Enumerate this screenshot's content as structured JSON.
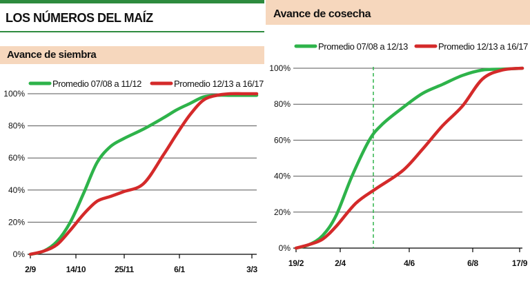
{
  "left": {
    "main_title": "LOS NÚMEROS DEL MAÍZ",
    "panel_title": "Avance de siembra"
  },
  "right": {
    "panel_title": "Avance de cosecha"
  },
  "colors": {
    "green": "#2eb34a",
    "red": "#d42a2a",
    "grid": "#555555",
    "header": "#f6d7bd",
    "accent": "#2e8b3e"
  },
  "chart_data": [
    {
      "type": "line",
      "title": "Avance de siembra",
      "x_ticks": [
        "2/9",
        "14/10",
        "25/11",
        "6/1",
        "3/3"
      ],
      "y_ticks": [
        "0%",
        "20%",
        "40%",
        "60%",
        "80%",
        "100%"
      ],
      "ylim": [
        0,
        100
      ],
      "grid": true,
      "legend": "top",
      "series": [
        {
          "name": "Promedio 07/08 a 11/12",
          "color": "#2eb34a",
          "points": [
            [
              0,
              0
            ],
            [
              10,
              2
            ],
            [
              20,
              8
            ],
            [
              30,
              20
            ],
            [
              40,
              38
            ],
            [
              50,
              57
            ],
            [
              60,
              67
            ],
            [
              70,
              72
            ],
            [
              85,
              78
            ],
            [
              100,
              85
            ],
            [
              110,
              90
            ],
            [
              120,
              94
            ],
            [
              130,
              98
            ],
            [
              140,
              99
            ],
            [
              150,
              99
            ],
            [
              160,
              99
            ],
            [
              170,
              99
            ]
          ]
        },
        {
          "name": "Promedio 12/13 a 16/17",
          "color": "#d42a2a",
          "points": [
            [
              0,
              0
            ],
            [
              10,
              2
            ],
            [
              20,
              6
            ],
            [
              30,
              15
            ],
            [
              40,
              25
            ],
            [
              50,
              33
            ],
            [
              60,
              36
            ],
            [
              70,
              39
            ],
            [
              85,
              44
            ],
            [
              100,
              62
            ],
            [
              110,
              75
            ],
            [
              120,
              87
            ],
            [
              130,
              96
            ],
            [
              140,
              99
            ],
            [
              150,
              100
            ],
            [
              160,
              100
            ],
            [
              170,
              100
            ]
          ]
        }
      ]
    },
    {
      "type": "line",
      "title": "Avance de cosecha",
      "x_ticks": [
        "19/2",
        "2/4",
        "4/6",
        "6/8",
        "17/9"
      ],
      "y_ticks": [
        "0%",
        "20%",
        "40%",
        "60%",
        "80%",
        "100%"
      ],
      "ylim": [
        0,
        100
      ],
      "grid": true,
      "legend": "top",
      "vline_note": "dashed green reference line near mid-April",
      "series": [
        {
          "name": "Promedio 07/08 a 12/13",
          "color": "#2eb34a",
          "points": [
            [
              0,
              0
            ],
            [
              10,
              2
            ],
            [
              20,
              7
            ],
            [
              30,
              18
            ],
            [
              42,
              40
            ],
            [
              55,
              60
            ],
            [
              65,
              69
            ],
            [
              80,
              78
            ],
            [
              95,
              86
            ],
            [
              110,
              91
            ],
            [
              125,
              96
            ],
            [
              140,
              99
            ],
            [
              155,
              99.5
            ],
            [
              170,
              100
            ]
          ]
        },
        {
          "name": "Promedio 12/13 a 16/17",
          "color": "#d42a2a",
          "points": [
            [
              0,
              0
            ],
            [
              10,
              2
            ],
            [
              20,
              5
            ],
            [
              30,
              12
            ],
            [
              45,
              25
            ],
            [
              60,
              33
            ],
            [
              80,
              43
            ],
            [
              95,
              55
            ],
            [
              110,
              68
            ],
            [
              125,
              79
            ],
            [
              140,
              94
            ],
            [
              155,
              99
            ],
            [
              170,
              100
            ]
          ]
        }
      ]
    }
  ]
}
